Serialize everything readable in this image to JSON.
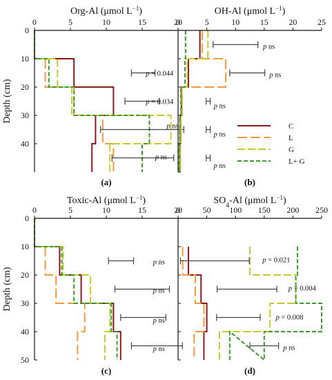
{
  "figure": {
    "colors": {
      "C": "#8b1a1a",
      "L": "#f59a3c",
      "G": "#c8c832",
      "LG": "#3a9a2a",
      "axis": "#111111",
      "bar": "#444444"
    }
  },
  "chart_data": [
    {
      "id": "a",
      "panel_label": "(a)",
      "type": "line",
      "title_main": "Org-Al (μmol L",
      "title_sup": "−1",
      "title_end": ")",
      "ylabel": "Depth (cm)",
      "xlim": [
        0,
        20
      ],
      "ylim": [
        0,
        50
      ],
      "y_inverted": true,
      "xticks": [
        0,
        5,
        10,
        15,
        20
      ],
      "yticks": [
        0,
        10,
        20,
        30,
        40
      ],
      "series": [
        {
          "name": "C",
          "steps": [
            [
              0,
              0,
              10
            ],
            [
              5.5,
              10,
              20
            ],
            [
              11,
              20,
              30
            ],
            [
              8.5,
              30,
              40
            ],
            [
              8,
              40,
              50
            ]
          ]
        },
        {
          "name": "L",
          "steps": [
            [
              0,
              0,
              10
            ],
            [
              1.5,
              10,
              20
            ],
            [
              5.5,
              20,
              30
            ],
            [
              9.5,
              30,
              40
            ],
            [
              11,
              40,
              50
            ]
          ]
        },
        {
          "name": "G",
          "steps": [
            [
              0,
              0,
              10
            ],
            [
              3.2,
              10,
              20
            ],
            [
              5.2,
              20,
              30
            ],
            [
              19,
              30,
              40
            ],
            [
              10.5,
              40,
              50
            ]
          ]
        },
        {
          "name": "L+ G",
          "steps": [
            [
              0,
              0,
              10
            ],
            [
              2,
              10,
              20
            ],
            [
              5.5,
              20,
              30
            ],
            [
              16,
              30,
              40
            ],
            [
              15,
              40,
              50
            ]
          ]
        }
      ],
      "errorbars": [
        {
          "depth": 15,
          "x_left": 13.5,
          "x_right": 16.8
        },
        {
          "depth": 25,
          "x_left": 12.6,
          "x_right": 17.4
        },
        {
          "depth": 35,
          "x_left": 9.2,
          "x_right": 20.8
        },
        {
          "depth": 45,
          "x_left": 10.8,
          "x_right": 19.4
        }
      ],
      "annotations": [
        {
          "depth": 15,
          "x": 15.5,
          "p": "p",
          "text": " = 0.044"
        },
        {
          "depth": 25,
          "x": 15.5,
          "p": "p",
          "text": " = 0.034"
        },
        {
          "depth": 33.5,
          "x": 18.4,
          "p": "p",
          "text": " ns"
        },
        {
          "depth": 44.5,
          "x": 16.8,
          "p": "p",
          "text": " ns"
        }
      ]
    },
    {
      "id": "b",
      "panel_label": "(b)",
      "type": "line",
      "title_main": "OH-Al (μmol L",
      "title_sup": "−1",
      "title_end": ")",
      "ylabel": "",
      "xlim": [
        0,
        25
      ],
      "ylim": [
        0,
        50
      ],
      "y_inverted": true,
      "xticks": [
        0,
        5,
        10,
        15,
        20,
        25
      ],
      "yticks": [],
      "series": [
        {
          "name": "C",
          "steps": [
            [
              3.8,
              0,
              10
            ],
            [
              1.8,
              10,
              20
            ],
            [
              0.6,
              20,
              30
            ],
            [
              0.4,
              30,
              40
            ],
            [
              0.3,
              40,
              50
            ]
          ]
        },
        {
          "name": "L",
          "steps": [
            [
              4.2,
              0,
              10
            ],
            [
              8.3,
              10,
              20
            ],
            [
              0.7,
              20,
              30
            ],
            [
              0.5,
              30,
              40
            ],
            [
              0.4,
              40,
              50
            ]
          ]
        },
        {
          "name": "G",
          "steps": [
            [
              5.2,
              0,
              10
            ],
            [
              1.6,
              10,
              20
            ],
            [
              0.7,
              20,
              30
            ],
            [
              0.5,
              30,
              40
            ],
            [
              0.4,
              40,
              50
            ]
          ]
        },
        {
          "name": "L+ G",
          "steps": [
            [
              1.3,
              0,
              10
            ],
            [
              1.2,
              10,
              20
            ],
            [
              0.5,
              20,
              30
            ],
            [
              0.3,
              30,
              40
            ],
            [
              0.2,
              40,
              50
            ]
          ]
        }
      ],
      "errorbars": [
        {
          "depth": 5,
          "x_left": 6.1,
          "x_right": 13.9
        },
        {
          "depth": 15,
          "x_left": 9.0,
          "x_right": 15.1
        },
        {
          "depth": 25,
          "x_left": 4.9,
          "x_right": 5.6
        },
        {
          "depth": 35,
          "x_left": 4.9,
          "x_right": 5.6
        },
        {
          "depth": 45,
          "x_left": 4.9,
          "x_right": 5.6
        }
      ],
      "annotations": [
        {
          "depth": 5.5,
          "x": 14.8,
          "p": "p",
          "text": " ns"
        },
        {
          "depth": 15.5,
          "x": 15.9,
          "p": "p",
          "text": " ns"
        },
        {
          "depth": 26.5,
          "x": 6.2,
          "p": "p",
          "text": " ns"
        },
        {
          "depth": 36.5,
          "x": 6.2,
          "p": "p",
          "text": " ns"
        },
        {
          "depth": 47.5,
          "x": 6.2,
          "p": "p",
          "text": " ns"
        }
      ],
      "legend": {
        "placement": "right-middle",
        "entries": [
          "C",
          "L",
          "G",
          "L+ G"
        ]
      }
    },
    {
      "id": "c",
      "panel_label": "(c)",
      "type": "line",
      "title_main": "Toxic-Al (μmol L",
      "title_sup": "−1",
      "title_end": ")",
      "ylabel": "Depth (cm)",
      "xlim": [
        0,
        20
      ],
      "ylim": [
        0,
        50
      ],
      "y_inverted": true,
      "xticks": [
        0,
        5,
        10,
        15,
        20
      ],
      "yticks": [
        0,
        10,
        20,
        30,
        40,
        50
      ],
      "series": [
        {
          "name": "C",
          "steps": [
            [
              0,
              0,
              10
            ],
            [
              3.5,
              10,
              20
            ],
            [
              6.5,
              20,
              30
            ],
            [
              11,
              30,
              40
            ],
            [
              12,
              40,
              50
            ]
          ]
        },
        {
          "name": "L",
          "steps": [
            [
              0,
              0,
              10
            ],
            [
              1.5,
              10,
              20
            ],
            [
              3,
              20,
              30
            ],
            [
              7,
              30,
              40
            ],
            [
              6,
              40,
              50
            ]
          ]
        },
        {
          "name": "G",
          "steps": [
            [
              0,
              0,
              10
            ],
            [
              4,
              10,
              20
            ],
            [
              7.8,
              20,
              30
            ],
            [
              10.5,
              30,
              40
            ],
            [
              9.8,
              40,
              50
            ]
          ]
        },
        {
          "name": "L+ G",
          "steps": [
            [
              0,
              0,
              10
            ],
            [
              3.8,
              10,
              20
            ],
            [
              5.5,
              20,
              30
            ],
            [
              10.7,
              30,
              40
            ],
            [
              11.5,
              40,
              50
            ]
          ]
        }
      ],
      "errorbars": [
        {
          "depth": 15,
          "x_left": 10.3,
          "x_right": 13.8
        },
        {
          "depth": 25,
          "x_left": 11.2,
          "x_right": 18.8
        },
        {
          "depth": 35,
          "x_left": 12.0,
          "x_right": 18.3
        },
        {
          "depth": 45,
          "x_left": 13.5,
          "x_right": 20.6
        }
      ],
      "annotations": [
        {
          "depth": 15.3,
          "x": 16.5,
          "p": "p",
          "text": " ns"
        },
        {
          "depth": 25.3,
          "x": 16.5,
          "p": "p",
          "text": " ns"
        },
        {
          "depth": 35.8,
          "x": 16.5,
          "p": "p",
          "text": " ns"
        },
        {
          "depth": 45.8,
          "x": 16.5,
          "p": "p",
          "text": " ns"
        }
      ]
    },
    {
      "id": "d",
      "panel_label": "(d)",
      "type": "line",
      "title_main": "SO",
      "title_sub": "4",
      "title_rest": "-Al (μmol L",
      "title_sup": "−1",
      "title_end": ")",
      "ylabel": "",
      "xlim": [
        0,
        250
      ],
      "ylim": [
        0,
        50
      ],
      "y_inverted": true,
      "xticks": [
        0,
        50,
        100,
        150,
        200,
        250
      ],
      "yticks": [],
      "series": [
        {
          "name": "C",
          "steps": [
            [
              18,
              10,
              20
            ],
            [
              40,
              20,
              30
            ],
            [
              50,
              30,
              40
            ],
            [
              45,
              40,
              50
            ]
          ]
        },
        {
          "name": "L",
          "steps": [
            [
              8,
              10,
              20
            ],
            [
              30,
              20,
              30
            ],
            [
              45,
              30,
              40
            ],
            [
              28,
              40,
              50
            ]
          ]
        },
        {
          "name": "G",
          "steps": [
            [
              125,
              10,
              20
            ],
            [
              205,
              20,
              30
            ],
            [
              160,
              30,
              40
            ],
            [
              72,
              40,
              50
            ]
          ]
        },
        {
          "name": "L+ G",
          "steps": [
            [
              208,
              10,
              20
            ],
            [
              205,
              20,
              30
            ],
            [
              250,
              30,
              40
            ],
            [
              150,
              40,
              50
            ],
            [
              90,
              40,
              50
            ]
          ]
        }
      ],
      "errorbars": [
        {
          "depth": 15,
          "x_left": 4,
          "x_right": 124
        },
        {
          "depth": 25,
          "x_left": 68,
          "x_right": 172
        },
        {
          "depth": 35,
          "x_left": 67,
          "x_right": 143
        },
        {
          "depth": 45,
          "x_left": 125,
          "x_right": 175
        }
      ],
      "annotations": [
        {
          "depth": 14.5,
          "x": 147,
          "p": "p",
          "text": " = 0.021"
        },
        {
          "depth": 24.5,
          "x": 192,
          "p": "p",
          "text": " = 0.004"
        },
        {
          "depth": 34.8,
          "x": 170,
          "p": "p",
          "text": " = 0.008"
        },
        {
          "depth": 45.5,
          "x": 183,
          "p": "p",
          "text": " ns"
        }
      ]
    }
  ]
}
